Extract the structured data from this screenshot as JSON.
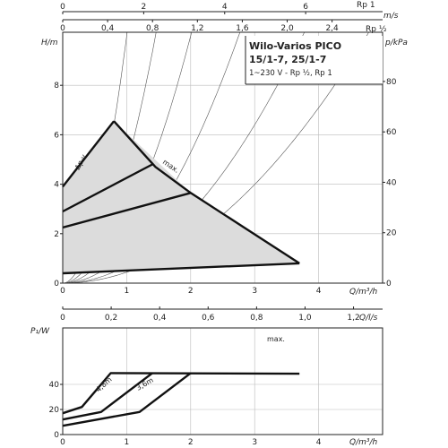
{
  "chart_data": [
    {
      "type": "line",
      "title": "Wilo-Varios PICO",
      "subtitle_1": "15/1-7, 25/1-7",
      "subtitle_2": "1~230 V - Rp ½, Rp 1",
      "xlabel": "Q/m³/h",
      "ylabel": "H/m",
      "ylabel_right": "p/kPa",
      "top_axis_1_label": "m/s",
      "top_axis_2_label": "Rp ½",
      "top_axis_1_title": "Rp 1",
      "xlim": [
        0,
        4.8
      ],
      "ylim": [
        0,
        10
      ],
      "x_ticks": [
        "0",
        "1",
        "2",
        "3",
        "4"
      ],
      "y_ticks": [
        "0",
        "2",
        "4",
        "6",
        "8"
      ],
      "kpa_ticks": [
        "0",
        "20",
        "40",
        "60",
        "80"
      ],
      "top_axis_1_ticks": [
        "0",
        "2",
        "4",
        "6"
      ],
      "top_axis_2_ticks": [
        "0",
        "0,4",
        "0,8",
        "1,2",
        "1,6",
        "2,0",
        "2,4"
      ],
      "annotations": [
        "Δp-v",
        "max."
      ],
      "grid": true,
      "operating_range": [
        [
          0,
          0.4
        ],
        [
          0,
          3.9
        ],
        [
          0.8,
          6.55
        ],
        [
          2.0,
          3.65
        ],
        [
          3.7,
          0.8
        ]
      ],
      "series": [
        {
          "name": "Δp-v",
          "x": [
            0,
            0.8
          ],
          "y": [
            3.9,
            6.55
          ]
        },
        {
          "name": "max.",
          "x": [
            0.8,
            1.45,
            2.0,
            3.7
          ],
          "y": [
            6.55,
            4.7,
            3.65,
            0.8
          ]
        },
        {
          "x": [
            0,
            1.4
          ],
          "y": [
            2.9,
            4.8
          ]
        },
        {
          "x": [
            0,
            2.0
          ],
          "y": [
            2.25,
            3.65
          ]
        },
        {
          "x": [
            0,
            3.7
          ],
          "y": [
            0.4,
            0.8
          ]
        }
      ],
      "system_curves_x_at_top": [
        1.0,
        1.45,
        2.0,
        2.75,
        3.75,
        4.75
      ]
    },
    {
      "type": "line",
      "xlabel": "Q/m³/h",
      "ylabel": "P₁/W",
      "top_axis_label": "Q/l/s",
      "xlim": [
        0,
        4.8
      ],
      "ylim": [
        0,
        55
      ],
      "x_ticks": [
        "0",
        "1",
        "2",
        "3",
        "4"
      ],
      "y_ticks": [
        "0",
        "20",
        "40"
      ],
      "top_axis_ticks": [
        "0",
        "0,2",
        "0,4",
        "0,6",
        "0,8",
        "1,0",
        "1,2"
      ],
      "annotations": [
        "max.",
        "4,8m",
        "3,6m"
      ],
      "grid": true,
      "series": [
        {
          "name": "max.",
          "x": [
            0,
            0.3,
            0.75,
            3.7
          ],
          "y": [
            17,
            22,
            49,
            48.5
          ]
        },
        {
          "name": "4,8m",
          "x": [
            0,
            0.6,
            1.4
          ],
          "y": [
            12,
            18,
            49
          ]
        },
        {
          "name": "3,6m",
          "x": [
            0,
            1.2,
            2.0
          ],
          "y": [
            7,
            18,
            49
          ]
        }
      ]
    }
  ]
}
